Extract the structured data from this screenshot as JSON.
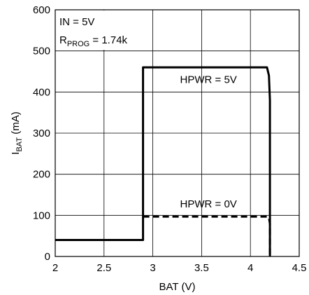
{
  "chart_data": {
    "type": "line",
    "xlabel": "BAT (V)",
    "ylabel_main": "I",
    "ylabel_sub": "BAT",
    "ylabel_unit": " (mA)",
    "xlim": [
      2,
      4.5
    ],
    "ylim": [
      0,
      600
    ],
    "x_ticks": [
      "2",
      "2.5",
      "3",
      "3.5",
      "4",
      "4.5"
    ],
    "y_ticks": [
      "0",
      "100",
      "200",
      "300",
      "400",
      "500",
      "600"
    ],
    "grid": true,
    "conditions": {
      "line1": "IN = 5V",
      "line2_main": "R",
      "line2_sub": "PROG",
      "line2_rest": " = 1.74k"
    },
    "series": [
      {
        "name": "HPWR = 5V",
        "style": "solid",
        "x": [
          2.0,
          2.9,
          2.9,
          4.17,
          4.19,
          4.2,
          4.2
        ],
        "y": [
          40,
          40,
          460,
          460,
          440,
          380,
          0
        ]
      },
      {
        "name": "HPWR = 0V",
        "style": "dashed",
        "x": [
          2.9,
          4.17,
          4.19,
          4.2,
          4.2
        ],
        "y": [
          97,
          97,
          94,
          80,
          0
        ]
      }
    ],
    "annotation_positions": [
      {
        "label": "HPWR = 5V",
        "x": 3.57,
        "y": 422
      },
      {
        "label": "HPWR = 0V",
        "x": 3.57,
        "y": 119
      }
    ]
  }
}
